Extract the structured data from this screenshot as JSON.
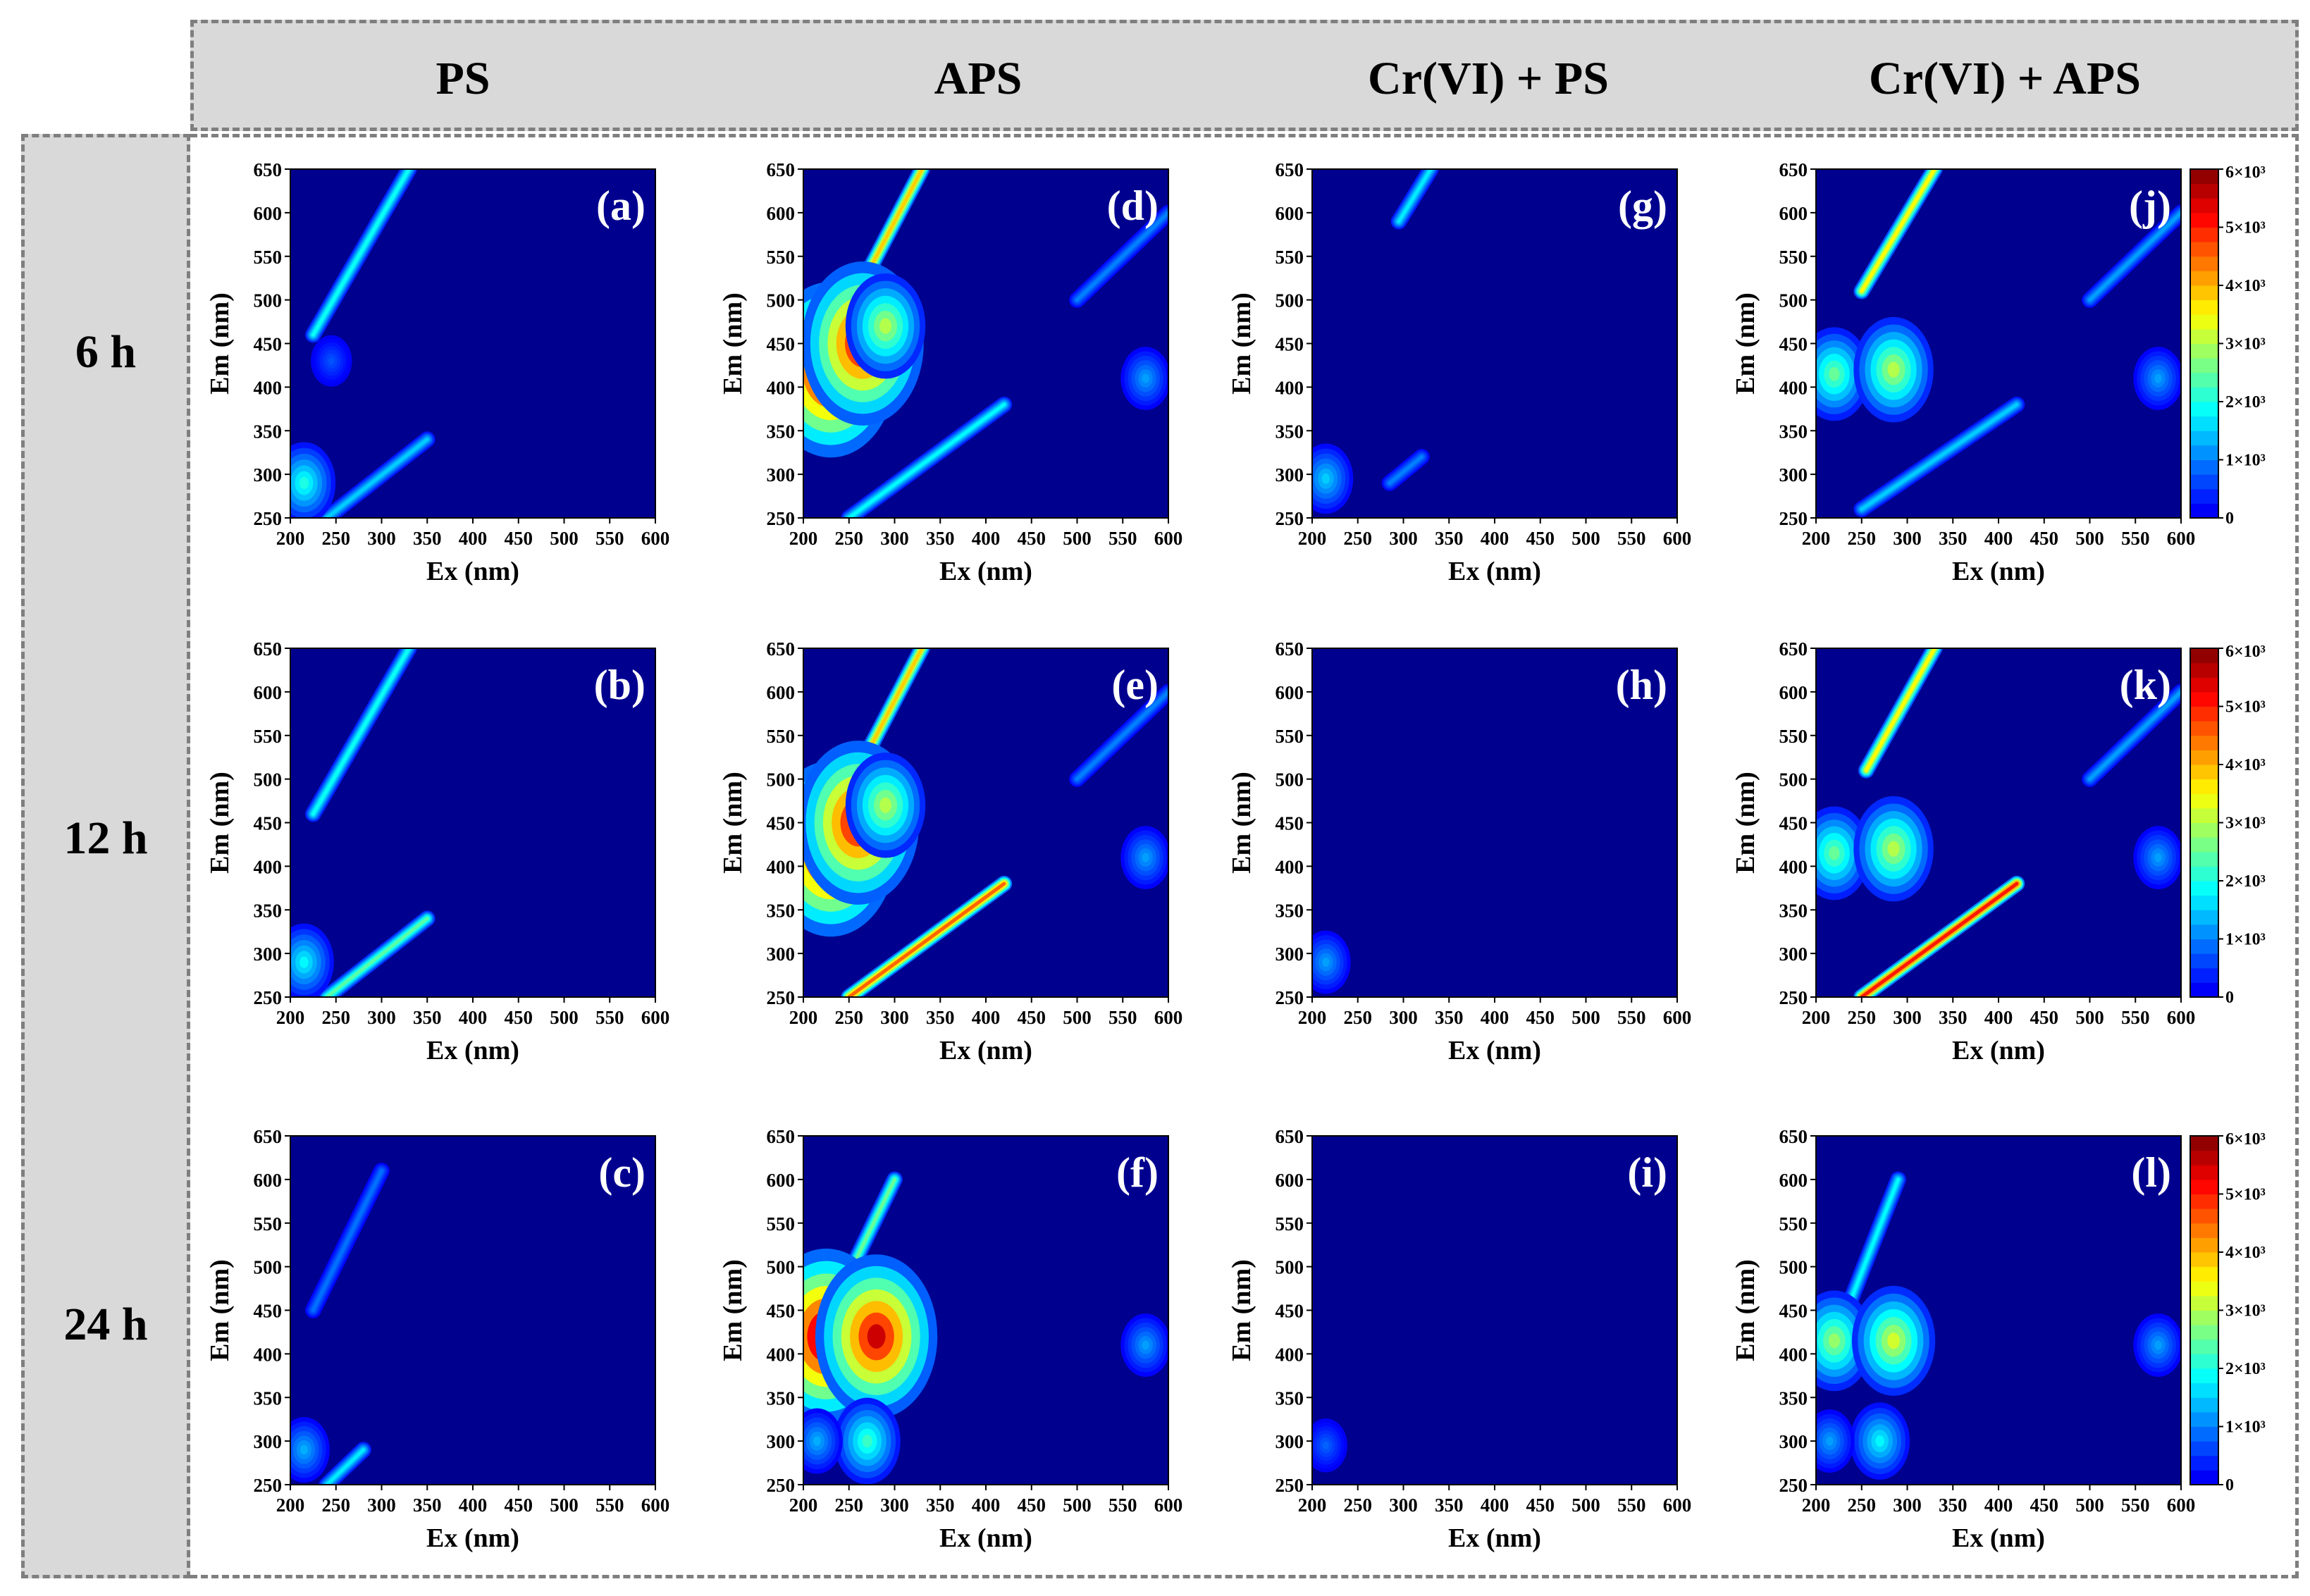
{
  "columns": [
    {
      "label": "PS"
    },
    {
      "label": "APS"
    },
    {
      "label": "Cr(VI) + PS"
    },
    {
      "label": "Cr(VI) + APS"
    }
  ],
  "rows": [
    {
      "label": "6 h"
    },
    {
      "label": "12 h"
    },
    {
      "label": "24 h"
    }
  ],
  "colors": {
    "background": "#00008f",
    "low": "#0a2a9e",
    "mid": "#19c3dc",
    "high": "#e01010",
    "header_fill": "#d9d9d9",
    "header_border": "#7f7f7f"
  },
  "chart_data": {
    "type": "heatmap",
    "description_kind": "EEM contour maps",
    "xlabel": "Ex (nm)",
    "ylabel": "Em (nm)",
    "xlim": [
      200,
      600
    ],
    "ylim": [
      250,
      650
    ],
    "xticks": [
      200,
      250,
      300,
      350,
      400,
      450,
      500,
      550,
      600
    ],
    "yticks": [
      250,
      300,
      350,
      400,
      450,
      500,
      550,
      600,
      650
    ],
    "colorbar": {
      "range": [
        0,
        6000
      ],
      "ticks": [
        {
          "value": 0,
          "label": "0"
        },
        {
          "value": 1000,
          "label": "1×10³"
        },
        {
          "value": 2000,
          "label": "2×10³"
        },
        {
          "value": 3000,
          "label": "3×10³"
        },
        {
          "value": 4000,
          "label": "4×10³"
        },
        {
          "value": 5000,
          "label": "5×10³"
        },
        {
          "value": 6000,
          "label": "6×10³"
        }
      ]
    },
    "panels": [
      {
        "letter": "(a)",
        "condition": "PS",
        "time": "6 h",
        "peaks": [
          {
            "ex": 215,
            "em": 290,
            "intensity": 2000
          },
          {
            "ex": 245,
            "em": 430,
            "intensity": 700
          }
        ],
        "bands": [
          {
            "ex1": 225,
            "em1": 460,
            "ex2": 330,
            "em2": 650,
            "intensity": 1900
          },
          {
            "ex1": 240,
            "em1": 250,
            "ex2": 350,
            "em2": 340,
            "intensity": 1500
          }
        ]
      },
      {
        "letter": "(b)",
        "condition": "PS",
        "time": "12 h",
        "peaks": [
          {
            "ex": 215,
            "em": 290,
            "intensity": 1800
          }
        ],
        "bands": [
          {
            "ex1": 225,
            "em1": 460,
            "ex2": 330,
            "em2": 650,
            "intensity": 1900
          },
          {
            "ex1": 240,
            "em1": 250,
            "ex2": 350,
            "em2": 340,
            "intensity": 2400
          }
        ]
      },
      {
        "letter": "(c)",
        "condition": "PS",
        "time": "24 h",
        "peaks": [
          {
            "ex": 215,
            "em": 290,
            "intensity": 1300
          }
        ],
        "bands": [
          {
            "ex1": 225,
            "em1": 450,
            "ex2": 300,
            "em2": 610,
            "intensity": 900
          },
          {
            "ex1": 240,
            "em1": 250,
            "ex2": 280,
            "em2": 290,
            "intensity": 1700
          }
        ]
      },
      {
        "letter": "(d)",
        "condition": "APS",
        "time": "6 h",
        "peaks": [
          {
            "ex": 230,
            "em": 420,
            "intensity": 6000
          },
          {
            "ex": 265,
            "em": 450,
            "intensity": 5500
          },
          {
            "ex": 290,
            "em": 470,
            "intensity": 3000
          },
          {
            "ex": 575,
            "em": 410,
            "intensity": 1200
          }
        ],
        "bands": [
          {
            "ex1": 255,
            "em1": 500,
            "ex2": 330,
            "em2": 650,
            "intensity": 3800
          },
          {
            "ex1": 250,
            "em1": 250,
            "ex2": 420,
            "em2": 380,
            "intensity": 1800
          },
          {
            "ex1": 500,
            "em1": 500,
            "ex2": 600,
            "em2": 600,
            "intensity": 1000
          }
        ]
      },
      {
        "letter": "(e)",
        "condition": "APS",
        "time": "12 h",
        "peaks": [
          {
            "ex": 230,
            "em": 420,
            "intensity": 6000
          },
          {
            "ex": 260,
            "em": 450,
            "intensity": 5500
          },
          {
            "ex": 290,
            "em": 470,
            "intensity": 3000
          },
          {
            "ex": 575,
            "em": 410,
            "intensity": 1200
          }
        ],
        "bands": [
          {
            "ex1": 255,
            "em1": 500,
            "ex2": 330,
            "em2": 650,
            "intensity": 3800
          },
          {
            "ex1": 250,
            "em1": 250,
            "ex2": 420,
            "em2": 380,
            "intensity": 4500
          },
          {
            "ex1": 500,
            "em1": 500,
            "ex2": 600,
            "em2": 600,
            "intensity": 1000
          }
        ]
      },
      {
        "letter": "(f)",
        "condition": "APS",
        "time": "24 h",
        "peaks": [
          {
            "ex": 225,
            "em": 420,
            "intensity": 6000
          },
          {
            "ex": 280,
            "em": 420,
            "intensity": 5500
          },
          {
            "ex": 270,
            "em": 300,
            "intensity": 2200
          },
          {
            "ex": 215,
            "em": 300,
            "intensity": 1300
          },
          {
            "ex": 575,
            "em": 410,
            "intensity": 1200
          }
        ],
        "bands": [
          {
            "ex1": 240,
            "em1": 470,
            "ex2": 300,
            "em2": 600,
            "intensity": 2500
          }
        ]
      },
      {
        "letter": "(g)",
        "condition": "Cr(VI) + PS",
        "time": "6 h",
        "peaks": [
          {
            "ex": 215,
            "em": 295,
            "intensity": 1500
          }
        ],
        "bands": [
          {
            "ex1": 295,
            "em1": 590,
            "ex2": 330,
            "em2": 650,
            "intensity": 1700
          },
          {
            "ex1": 285,
            "em1": 290,
            "ex2": 320,
            "em2": 320,
            "intensity": 1000
          }
        ]
      },
      {
        "letter": "(h)",
        "condition": "Cr(VI) + PS",
        "time": "12 h",
        "peaks": [
          {
            "ex": 215,
            "em": 290,
            "intensity": 1200
          }
        ],
        "bands": []
      },
      {
        "letter": "(i)",
        "condition": "Cr(VI) + PS",
        "time": "24 h",
        "peaks": [
          {
            "ex": 215,
            "em": 295,
            "intensity": 800
          }
        ],
        "bands": []
      },
      {
        "letter": "(j)",
        "condition": "Cr(VI) + APS",
        "time": "6 h",
        "peaks": [
          {
            "ex": 220,
            "em": 415,
            "intensity": 2500
          },
          {
            "ex": 285,
            "em": 420,
            "intensity": 3000
          },
          {
            "ex": 575,
            "em": 410,
            "intensity": 1200
          }
        ],
        "bands": [
          {
            "ex1": 250,
            "em1": 510,
            "ex2": 330,
            "em2": 650,
            "intensity": 3500
          },
          {
            "ex1": 250,
            "em1": 260,
            "ex2": 420,
            "em2": 380,
            "intensity": 1500
          },
          {
            "ex1": 500,
            "em1": 500,
            "ex2": 600,
            "em2": 600,
            "intensity": 1200
          }
        ]
      },
      {
        "letter": "(k)",
        "condition": "Cr(VI) + APS",
        "time": "12 h",
        "peaks": [
          {
            "ex": 220,
            "em": 415,
            "intensity": 2500
          },
          {
            "ex": 285,
            "em": 420,
            "intensity": 3000
          },
          {
            "ex": 575,
            "em": 410,
            "intensity": 1200
          }
        ],
        "bands": [
          {
            "ex1": 255,
            "em1": 510,
            "ex2": 330,
            "em2": 650,
            "intensity": 3500
          },
          {
            "ex1": 250,
            "em1": 250,
            "ex2": 420,
            "em2": 380,
            "intensity": 5000
          },
          {
            "ex1": 500,
            "em1": 500,
            "ex2": 600,
            "em2": 600,
            "intensity": 1200
          }
        ]
      },
      {
        "letter": "(l)",
        "condition": "Cr(VI) + APS",
        "time": "24 h",
        "peaks": [
          {
            "ex": 220,
            "em": 415,
            "intensity": 2800
          },
          {
            "ex": 285,
            "em": 415,
            "intensity": 3200
          },
          {
            "ex": 270,
            "em": 300,
            "intensity": 1800
          },
          {
            "ex": 215,
            "em": 300,
            "intensity": 1200
          },
          {
            "ex": 575,
            "em": 410,
            "intensity": 1200
          }
        ],
        "bands": [
          {
            "ex1": 230,
            "em1": 440,
            "ex2": 290,
            "em2": 600,
            "intensity": 1800
          }
        ]
      }
    ]
  }
}
